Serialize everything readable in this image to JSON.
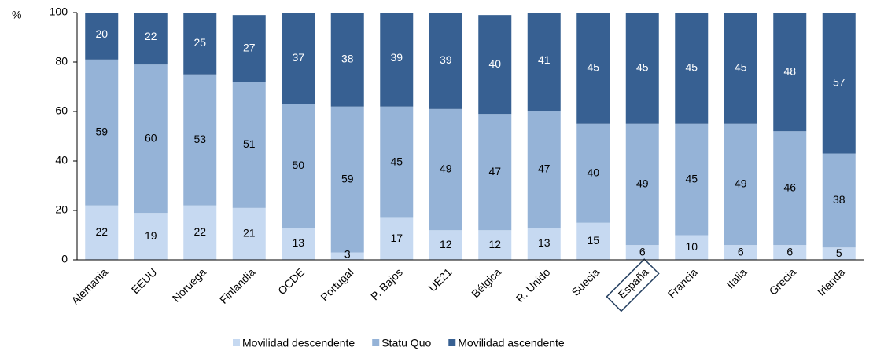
{
  "chart_data": {
    "type": "stacked_bar",
    "ylabel": "%",
    "categories": [
      "Alemania",
      "EEUU",
      "Noruega",
      "Finlandia",
      "OCDE",
      "Portugal",
      "P. Bajos",
      "UE21",
      "Bélgica",
      "R. Unido",
      "Suecia",
      "España",
      "Francia",
      "Italia",
      "Grecia",
      "Irlanda"
    ],
    "series": [
      {
        "name": "Movilidad descendente",
        "color": "#c6d9f1",
        "values": [
          22,
          19,
          22,
          21,
          13,
          3,
          17,
          12,
          12,
          13,
          15,
          6,
          10,
          6,
          6,
          5
        ]
      },
      {
        "name": "Statu Quo",
        "color": "#95b3d7",
        "values": [
          59,
          60,
          53,
          51,
          50,
          59,
          45,
          49,
          47,
          47,
          40,
          49,
          45,
          49,
          46,
          38
        ]
      },
      {
        "name": "Movilidad ascendente",
        "color": "#376092",
        "values": [
          20,
          22,
          25,
          27,
          37,
          38,
          39,
          39,
          40,
          41,
          45,
          45,
          45,
          45,
          48,
          57
        ]
      }
    ],
    "ylim": [
      0,
      100
    ],
    "yticks": [
      0,
      20,
      40,
      60,
      80,
      100
    ],
    "grid": false,
    "legend": "bottom"
  }
}
